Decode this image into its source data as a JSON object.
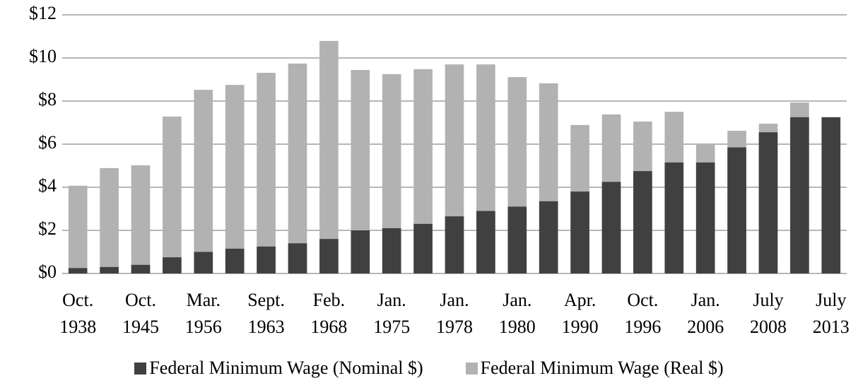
{
  "chart_data": {
    "type": "bar",
    "categories": [
      "Oct. 1938",
      null,
      "Oct. 1945",
      null,
      "Mar. 1956",
      null,
      "Sept. 1963",
      null,
      "Feb. 1968",
      null,
      "Jan. 1975",
      null,
      "Jan. 1978",
      null,
      "Jan. 1980",
      null,
      "Apr. 1990",
      null,
      "Oct. 1996",
      null,
      "Jan. 2006",
      null,
      "July 2008",
      null,
      "July 2013"
    ],
    "series": [
      {
        "name": "Federal Minimum Wage (Nominal $)",
        "color": "#404040",
        "values": [
          0.25,
          0.3,
          0.4,
          0.75,
          1.0,
          1.15,
          1.25,
          1.4,
          1.6,
          2.0,
          2.1,
          2.3,
          2.65,
          2.9,
          3.1,
          3.35,
          3.8,
          4.25,
          4.75,
          5.15,
          5.15,
          5.85,
          6.55,
          7.25,
          7.25
        ]
      },
      {
        "name": "Federal Minimum Wage (Real $)",
        "color": "#b2b2b2",
        "values": [
          4.07,
          4.89,
          5.02,
          7.28,
          8.52,
          8.75,
          9.31,
          9.74,
          10.79,
          9.44,
          9.25,
          9.48,
          9.7,
          9.7,
          9.11,
          8.82,
          6.89,
          7.38,
          7.05,
          7.5,
          5.97,
          6.62,
          6.95,
          7.93,
          7.25
        ]
      }
    ],
    "ylim": [
      0,
      12
    ],
    "yticks": [
      {
        "value": 0,
        "label": "$0"
      },
      {
        "value": 2,
        "label": "$2"
      },
      {
        "value": 4,
        "label": "$4"
      },
      {
        "value": 6,
        "label": "$6"
      },
      {
        "value": 8,
        "label": "$8"
      },
      {
        "value": 10,
        "label": "$10"
      },
      {
        "value": 12,
        "label": "$12"
      }
    ],
    "grid": true,
    "legend": "bottom"
  }
}
